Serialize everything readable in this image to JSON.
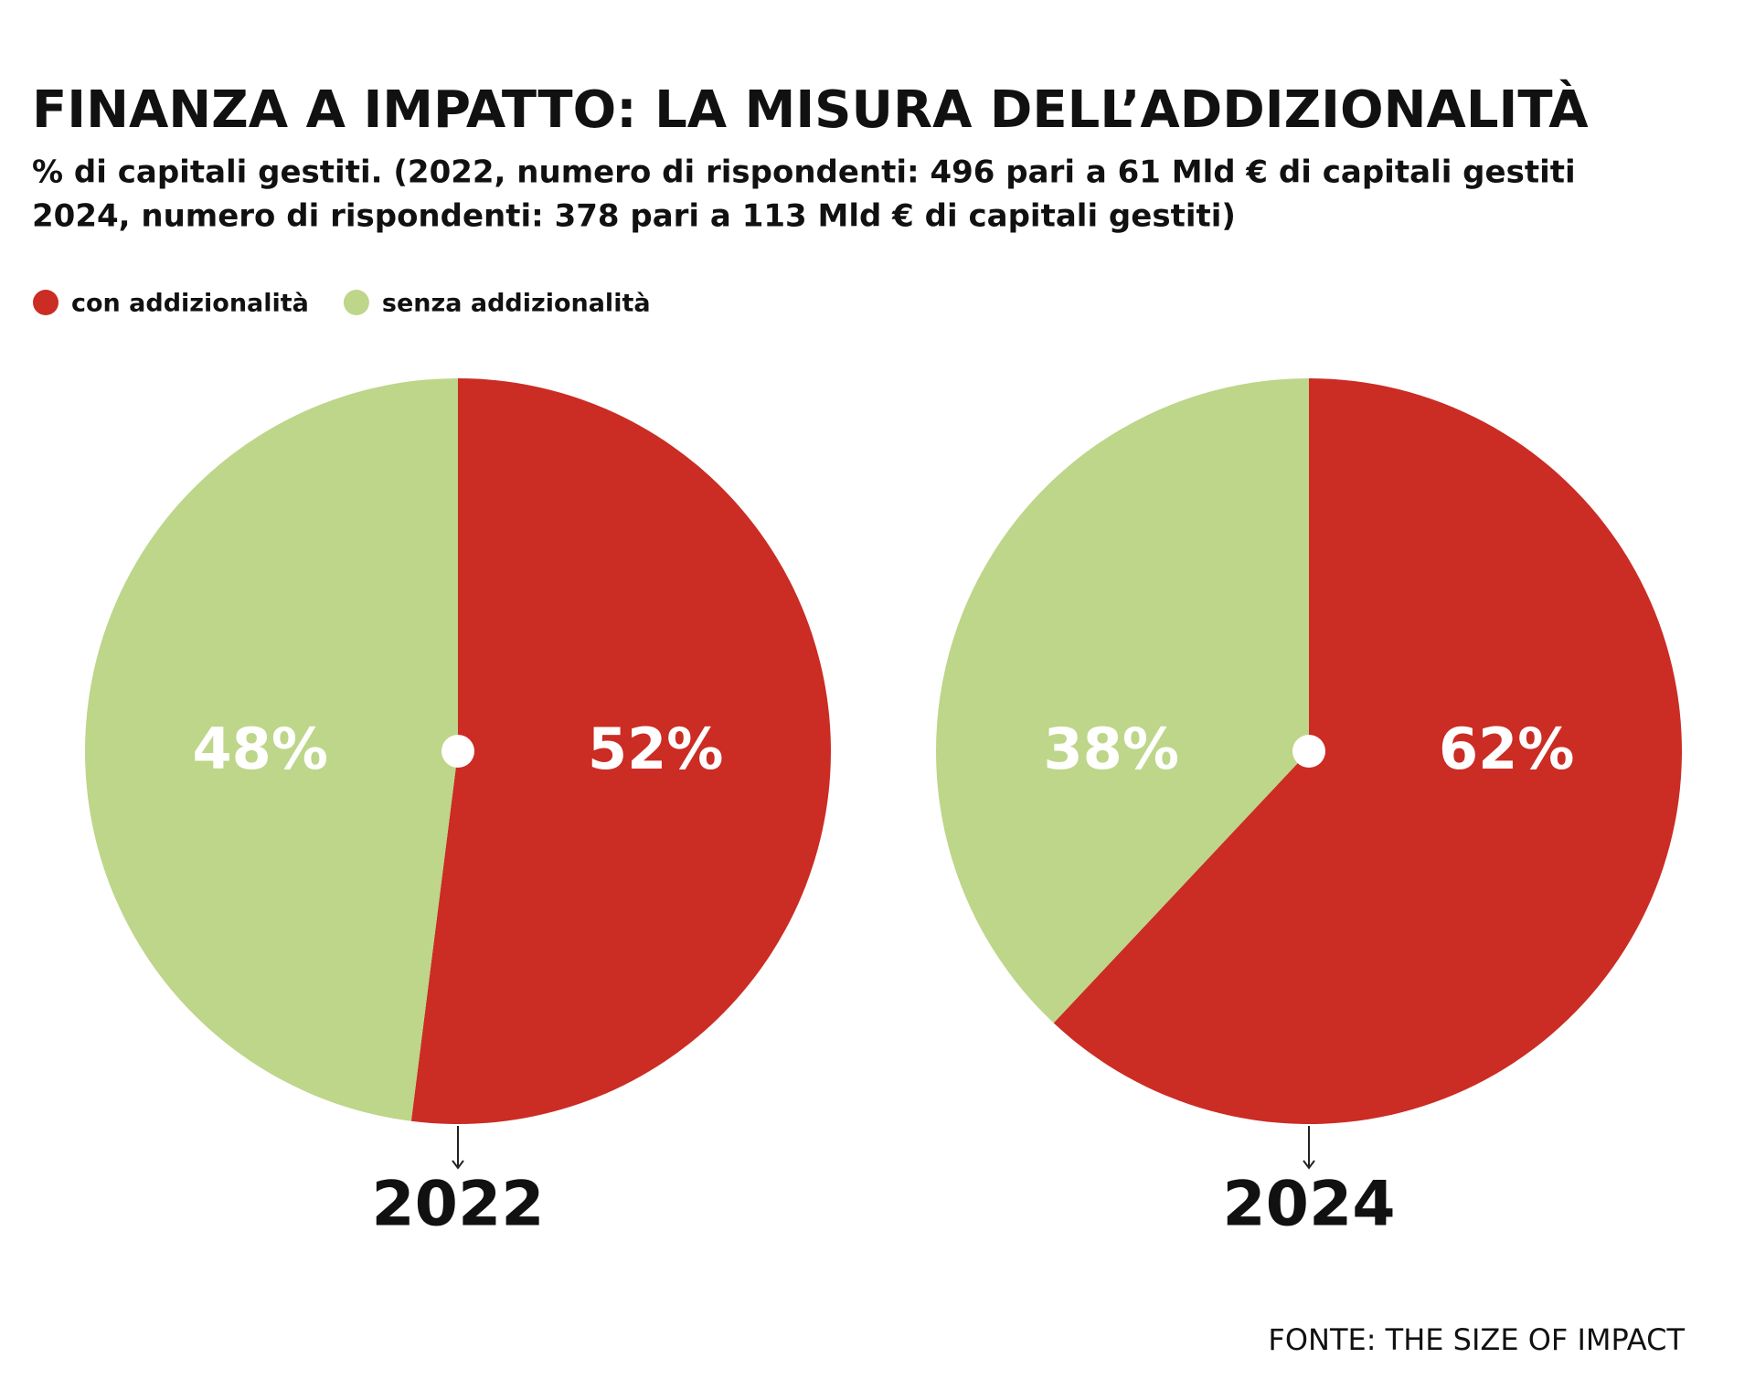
{
  "title": "FINANZA A IMPATTO: LA MISURA DELL’ADDIZIONALITÀ",
  "subtitle": [
    "% di capitali gestiti. (2022, numero di rispondenti: 496 pari a 61 Mld € di capitali gestiti",
    "2024, numero di rispondenti: 378 pari a 113 Mld € di capitali gestiti)"
  ],
  "source": "FONTE: THE SIZE OF IMPACT",
  "chart_data": [
    {
      "type": "pie",
      "label": "2022",
      "categories": [
        "con addizionalità",
        "senza addizionalità"
      ],
      "colors": [
        "#cb2c24",
        "#bdd689"
      ],
      "values": [
        52,
        48
      ],
      "value_labels": [
        "52%",
        "48%"
      ]
    },
    {
      "type": "pie",
      "label": "2024",
      "categories": [
        "con addizionalità",
        "senza addizionalità"
      ],
      "colors": [
        "#cb2c24",
        "#bdd689"
      ],
      "values": [
        62,
        38
      ],
      "value_labels": [
        "62%",
        "38%"
      ]
    }
  ]
}
